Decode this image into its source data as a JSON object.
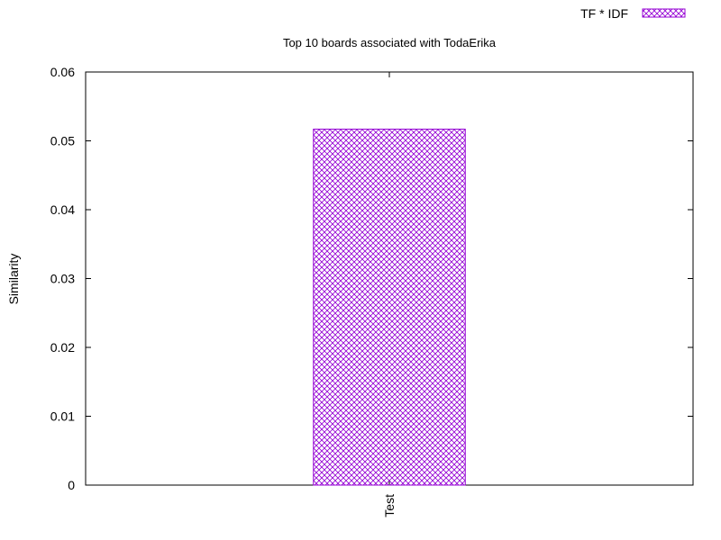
{
  "colors": {
    "bar_stroke": "#9400D3",
    "axis": "#000000",
    "background": "#ffffff"
  },
  "chart_data": {
    "type": "bar",
    "title": "Top 10 boards associated with TodaErika",
    "xlabel": "",
    "ylabel": "Similarity",
    "categories": [
      "Test"
    ],
    "series": [
      {
        "name": "TF * IDF",
        "values": [
          0.0517
        ]
      }
    ],
    "ylim": [
      0,
      0.06
    ],
    "yticks": [
      "0",
      "0.01",
      "0.02",
      "0.03",
      "0.04",
      "0.05",
      "0.06"
    ],
    "grid": false,
    "legend_position": "top-right",
    "bar_fill": "crosshatch"
  }
}
